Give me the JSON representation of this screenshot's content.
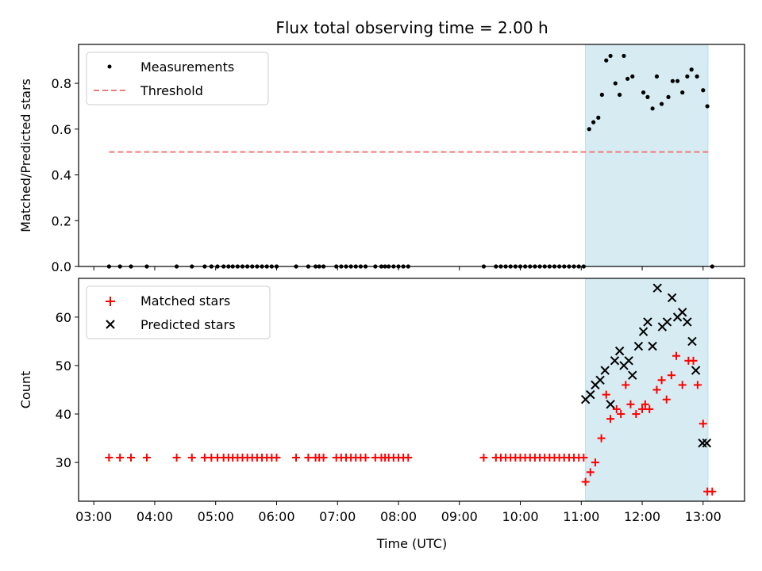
{
  "chart_data": {
    "type": "scatter",
    "title": "Flux total observing time = 2.00 h",
    "xlabel": "Time (UTC)",
    "x_ticks": [
      "03:00",
      "04:00",
      "05:00",
      "06:00",
      "07:00",
      "08:00",
      "09:00",
      "10:00",
      "11:00",
      "12:00",
      "13:00"
    ],
    "x_tick_hours": [
      3,
      4,
      5,
      6,
      7,
      8,
      9,
      10,
      11,
      12,
      13
    ],
    "xlim_hours": [
      2.75,
      13.68
    ],
    "highlight_span_hours": [
      11.07,
      13.08
    ],
    "panels": [
      {
        "ylabel": "Matched/Predicted stars",
        "ylim": [
          0,
          0.97
        ],
        "y_ticks": [
          "0.0",
          "0.2",
          "0.4",
          "0.6",
          "0.8"
        ],
        "y_tick_values": [
          0,
          0.2,
          0.4,
          0.6,
          0.8
        ],
        "legend": [
          "Measurements",
          "Threshold"
        ],
        "threshold": {
          "value": 0.5,
          "x_range_hours": [
            3.25,
            13.1
          ],
          "color": "#f07c7c"
        },
        "series": [
          {
            "name": "Measurements",
            "marker": "dot",
            "color": "#000000",
            "x": [
              3.25,
              3.43,
              3.61,
              3.87,
              4.36,
              4.61,
              4.82,
              4.93,
              5.03,
              5.13,
              5.21,
              5.28,
              5.36,
              5.44,
              5.52,
              5.6,
              5.68,
              5.76,
              5.84,
              5.92,
              6.0,
              6.32,
              6.52,
              6.64,
              6.7,
              6.77,
              6.98,
              7.06,
              7.14,
              7.22,
              7.3,
              7.38,
              7.46,
              7.62,
              7.72,
              7.78,
              7.84,
              7.92,
              8.0,
              8.08,
              8.16,
              9.4,
              9.6,
              9.68,
              9.76,
              9.84,
              9.92,
              10.0,
              10.08,
              10.16,
              10.24,
              10.32,
              10.4,
              10.48,
              10.56,
              10.64,
              10.72,
              10.8,
              10.88,
              10.96,
              11.04,
              11.13,
              11.2,
              11.28,
              11.34,
              11.41,
              11.48,
              11.56,
              11.63,
              11.7,
              11.76,
              11.84,
              12.02,
              12.09,
              12.17,
              12.24,
              12.32,
              12.43,
              12.5,
              12.58,
              12.66,
              12.74,
              12.81,
              12.9,
              13.0,
              13.07,
              13.15
            ],
            "y": [
              0,
              0,
              0,
              0,
              0,
              0,
              0,
              0,
              0,
              0,
              0,
              0,
              0,
              0,
              0,
              0,
              0,
              0,
              0,
              0,
              0,
              0,
              0,
              0,
              0,
              0,
              0,
              0,
              0,
              0,
              0,
              0,
              0,
              0,
              0,
              0,
              0,
              0,
              0,
              0,
              0,
              0,
              0,
              0,
              0,
              0,
              0,
              0,
              0,
              0,
              0,
              0,
              0,
              0,
              0,
              0,
              0,
              0,
              0,
              0,
              0,
              0.6,
              0.63,
              0.65,
              0.75,
              0.9,
              0.92,
              0.8,
              0.75,
              0.92,
              0.82,
              0.83,
              0.76,
              0.74,
              0.69,
              0.83,
              0.71,
              0.74,
              0.81,
              0.81,
              0.76,
              0.83,
              0.86,
              0.83,
              0.77,
              0.7,
              0
            ]
          }
        ]
      },
      {
        "ylabel": "Count",
        "ylim": [
          22,
          68
        ],
        "y_ticks": [
          "30",
          "40",
          "50",
          "60"
        ],
        "y_tick_values": [
          30,
          40,
          50,
          60
        ],
        "legend": [
          "Matched stars",
          "Predicted stars"
        ],
        "series": [
          {
            "name": "Matched stars",
            "marker": "plus",
            "color": "#ff0000",
            "x": [
              3.25,
              3.43,
              3.61,
              3.87,
              4.36,
              4.61,
              4.82,
              4.93,
              5.03,
              5.13,
              5.21,
              5.28,
              5.36,
              5.44,
              5.52,
              5.6,
              5.68,
              5.76,
              5.84,
              5.92,
              6.0,
              6.32,
              6.52,
              6.64,
              6.7,
              6.77,
              6.98,
              7.06,
              7.14,
              7.22,
              7.3,
              7.38,
              7.46,
              7.62,
              7.72,
              7.78,
              7.84,
              7.92,
              8.0,
              8.08,
              8.16,
              9.4,
              9.6,
              9.68,
              9.76,
              9.84,
              9.92,
              10.0,
              10.08,
              10.16,
              10.24,
              10.32,
              10.4,
              10.48,
              10.56,
              10.64,
              10.72,
              10.8,
              10.88,
              10.96,
              11.04,
              11.07,
              11.15,
              11.23,
              11.33,
              11.41,
              11.48,
              11.58,
              11.65,
              11.73,
              11.81,
              11.9,
              12.0,
              12.05,
              12.12,
              12.24,
              12.32,
              12.4,
              12.48,
              12.56,
              12.66,
              12.76,
              12.84,
              12.91,
              13.0,
              13.07,
              13.15
            ],
            "y": [
              31,
              31,
              31,
              31,
              31,
              31,
              31,
              31,
              31,
              31,
              31,
              31,
              31,
              31,
              31,
              31,
              31,
              31,
              31,
              31,
              31,
              31,
              31,
              31,
              31,
              31,
              31,
              31,
              31,
              31,
              31,
              31,
              31,
              31,
              31,
              31,
              31,
              31,
              31,
              31,
              31,
              31,
              31,
              31,
              31,
              31,
              31,
              31,
              31,
              31,
              31,
              31,
              31,
              31,
              31,
              31,
              31,
              31,
              31,
              31,
              31,
              26,
              28,
              30,
              35,
              44,
              39,
              41,
              40,
              46,
              42,
              40,
              41,
              42,
              41,
              45,
              47,
              43,
              48,
              52,
              46,
              51,
              51,
              46,
              38,
              24,
              24
            ]
          },
          {
            "name": "Predicted stars",
            "marker": "x",
            "color": "#000000",
            "x": [
              11.07,
              11.15,
              11.23,
              11.31,
              11.39,
              11.48,
              11.55,
              11.63,
              11.7,
              11.78,
              11.84,
              11.94,
              12.02,
              12.09,
              12.17,
              12.25,
              12.33,
              12.41,
              12.49,
              12.58,
              12.66,
              12.74,
              12.82,
              12.88,
              12.99,
              13.06
            ],
            "y": [
              43,
              44,
              46,
              47,
              49,
              42,
              51,
              53,
              50,
              51,
              48,
              54,
              57,
              59,
              54,
              66,
              58,
              59,
              64,
              60,
              61,
              59,
              55,
              49,
              34,
              34
            ]
          }
        ]
      }
    ]
  }
}
